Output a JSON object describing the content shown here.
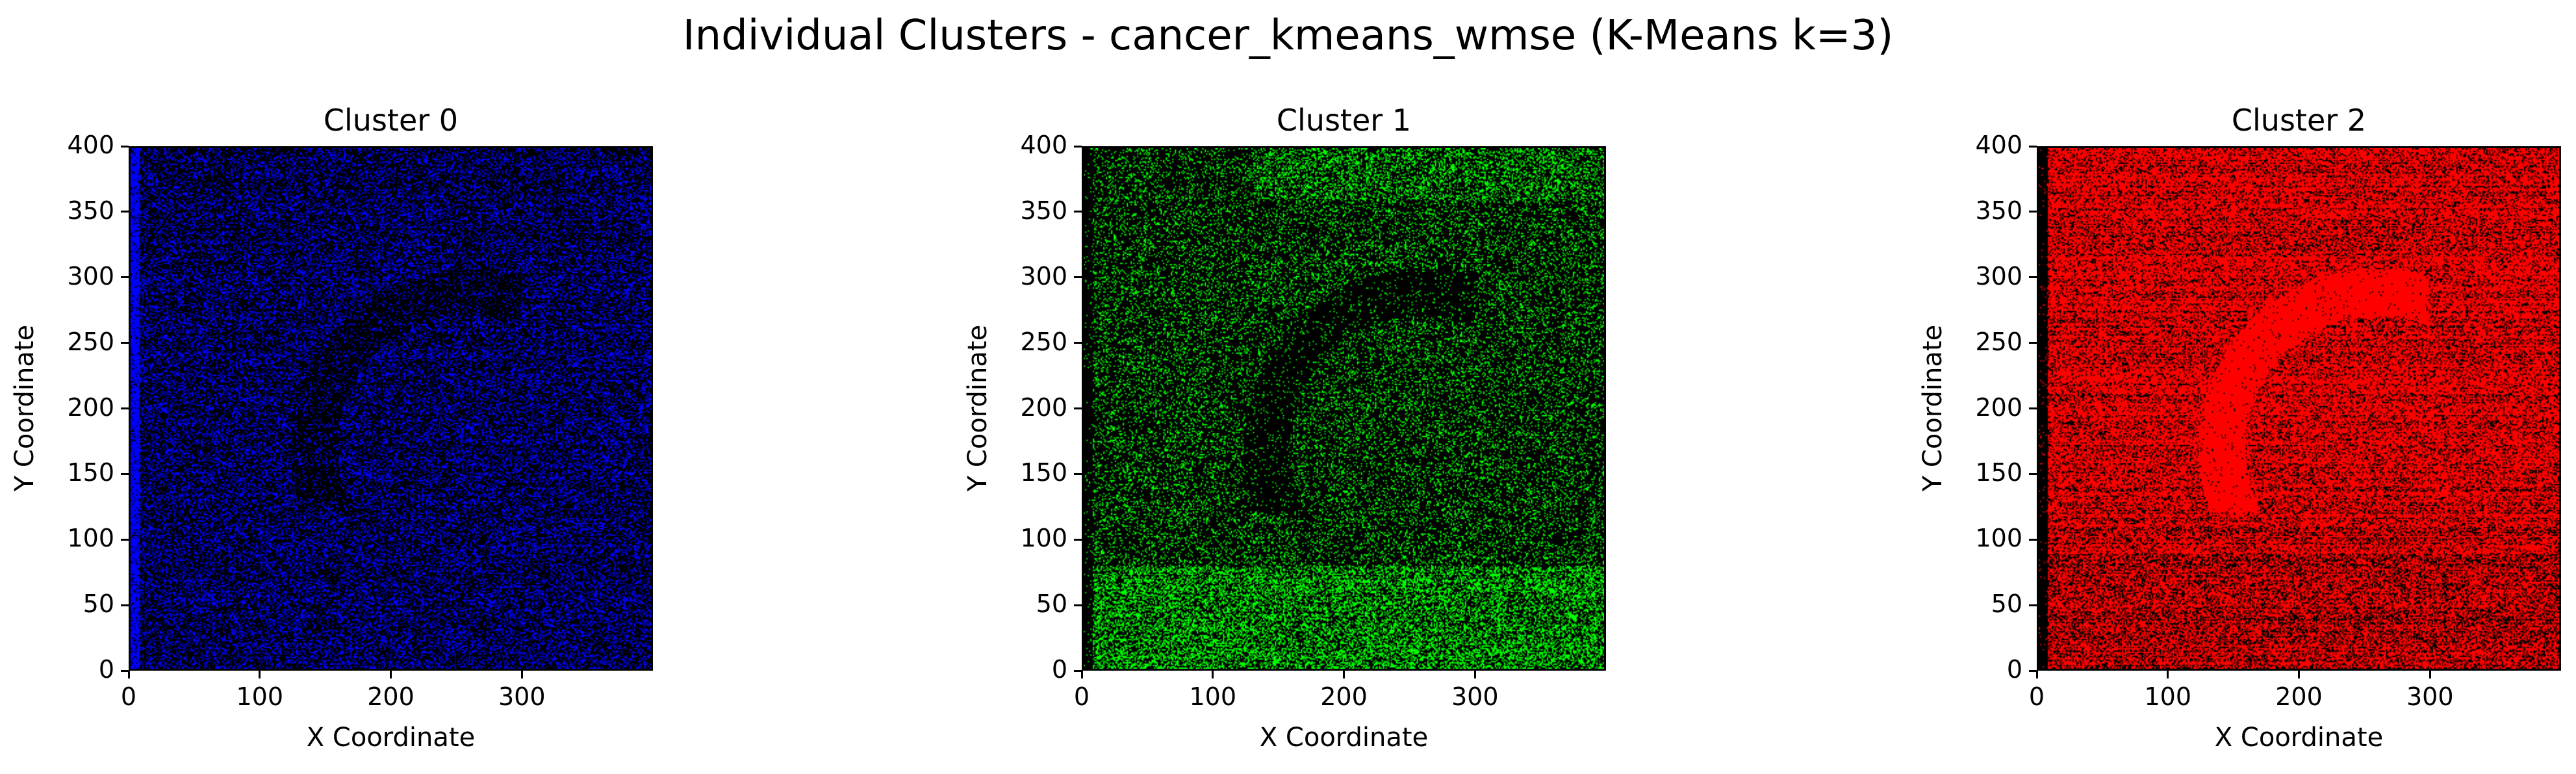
{
  "figure": {
    "title": "Individual Clusters - cancer_kmeans_wmse (K-Means k=3)"
  },
  "chart_data": [
    {
      "type": "heatmap",
      "title": "Cluster 0",
      "xlabel": "X Coordinate",
      "ylabel": "Y Coordinate",
      "xlim": [
        0,
        400
      ],
      "ylim": [
        0,
        400
      ],
      "xticks": [
        0,
        100,
        200,
        300
      ],
      "yticks": [
        0,
        50,
        100,
        150,
        200,
        250,
        300,
        350,
        400
      ],
      "color": "#0000ff",
      "background": "#000000",
      "density": 0.32,
      "grid": false
    },
    {
      "type": "heatmap",
      "title": "Cluster 1",
      "xlabel": "X Coordinate",
      "ylabel": "Y Coordinate",
      "xlim": [
        0,
        400
      ],
      "ylim": [
        0,
        400
      ],
      "xticks": [
        0,
        100,
        200,
        300
      ],
      "yticks": [
        0,
        50,
        100,
        150,
        200,
        250,
        300,
        350,
        400
      ],
      "color": "#00ff00",
      "background": "#000000",
      "density": 0.2,
      "grid": false
    },
    {
      "type": "heatmap",
      "title": "Cluster 2",
      "xlabel": "X Coordinate",
      "ylabel": "Y Coordinate",
      "xlim": [
        0,
        400
      ],
      "ylim": [
        0,
        400
      ],
      "xticks": [
        0,
        100,
        200,
        300
      ],
      "yticks": [
        0,
        50,
        100,
        150,
        200,
        250,
        300,
        350,
        400
      ],
      "color": "#ff0000",
      "background": "#000000",
      "density": 0.72,
      "grid": false
    }
  ]
}
